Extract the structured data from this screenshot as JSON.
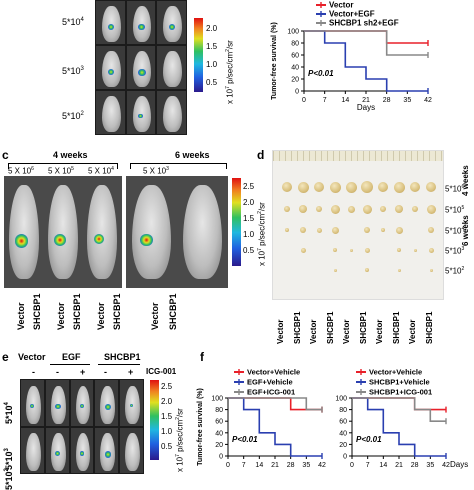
{
  "panel_a": {
    "row_labels": [
      "5*10",
      "5*10",
      "5*10"
    ],
    "row_exponents": [
      "4",
      "3",
      "2"
    ],
    "colorbar": {
      "ticks": [
        "2.0",
        "1.5",
        "1.0",
        "0.5"
      ],
      "unit": "x 10",
      "unit_exp": "7",
      "unit_rest": " p/sec/cm",
      "unit_exp2": "2",
      "unit_tail": "/sr"
    }
  },
  "panel_b_chart": {
    "chart_data": {
      "type": "line",
      "ylabel": "Tumor-free survival (%)",
      "xlabel": "Days",
      "x_ticks": [
        "0",
        "7",
        "14",
        "21",
        "28",
        "35",
        "42"
      ],
      "y_ticks": [
        "0",
        "20",
        "40",
        "60",
        "80",
        "100"
      ],
      "xlim": [
        0,
        42
      ],
      "ylim": [
        0,
        100
      ],
      "annotation": "P<0.01",
      "series": [
        {
          "name": "Vector",
          "color": "#e8202a",
          "points": [
            [
              0,
              100
            ],
            [
              28,
              100
            ],
            [
              28,
              80
            ],
            [
              42,
              80
            ]
          ]
        },
        {
          "name": "Vector+EGF",
          "color": "#2a3fb0",
          "points": [
            [
              0,
              100
            ],
            [
              7,
              100
            ],
            [
              7,
              80
            ],
            [
              14,
              80
            ],
            [
              14,
              40
            ],
            [
              21,
              40
            ],
            [
              21,
              20
            ],
            [
              28,
              20
            ],
            [
              28,
              0
            ],
            [
              42,
              0
            ]
          ]
        },
        {
          "name": "SHCBP1 sh2+EGF",
          "color": "#888888",
          "points": [
            [
              0,
              100
            ],
            [
              28,
              100
            ],
            [
              28,
              60
            ],
            [
              42,
              60
            ]
          ]
        }
      ]
    }
  },
  "panel_c": {
    "letter": "c",
    "group1_label": "4 weeks",
    "group2_label": "6 weeks",
    "doses": [
      "5 X 10",
      "5 X 10",
      "5 X 10",
      "5 X 10"
    ],
    "dose_exponents": [
      "6",
      "5",
      "4",
      "3"
    ],
    "columns": [
      "Vector",
      "SHCBP1",
      "Vector",
      "SHCBP1",
      "Vector",
      "SHCBP1",
      "Vector",
      "SHCBP1"
    ],
    "colorbar": {
      "ticks": [
        "2.5",
        "2.0",
        "1.5",
        "1.0",
        "0.5"
      ],
      "unit": "x 10",
      "unit_exp": "7",
      "unit_rest": " p/sec/cm",
      "unit_exp2": "2",
      "unit_tail": "/sr"
    }
  },
  "panel_d": {
    "letter": "d",
    "rows": [
      "5*10",
      "5*10",
      "5*10",
      "5*10",
      "5*10"
    ],
    "row_exponents": [
      "6",
      "5",
      "4",
      "3",
      "2"
    ],
    "weeks_top": "4 weeks",
    "weeks_bottom": "6 weeks",
    "columns": [
      "Vector",
      "SHCBP1",
      "Vector",
      "SHCBP1",
      "Vector",
      "SHCBP1",
      "Vector",
      "SHCBP1",
      "Vector",
      "SHCBP1"
    ]
  },
  "panel_e": {
    "letter": "e",
    "header_vector": "Vector",
    "header_egf": "EGF",
    "header_shcbp1": "SHCBP1",
    "icg_label": "ICG-001",
    "signs": [
      "-",
      "-",
      "+",
      "-",
      "+"
    ],
    "row_labels": [
      "5*10",
      "5*10",
      "5*10"
    ],
    "row_exponents": [
      "4",
      "3",
      "2"
    ],
    "colorbar": {
      "ticks": [
        "2.5",
        "2.0",
        "1.5",
        "1.0",
        "0.5"
      ],
      "unit": "x 10",
      "unit_exp": "7",
      "unit_rest": " p/sec/cm",
      "unit_exp2": "2",
      "unit_tail": "/sr"
    }
  },
  "panel_f": {
    "letter": "f",
    "left_chart": {
      "chart_data": {
        "type": "line",
        "ylabel": "Tumor-free survival (%)",
        "xlabel": "",
        "x_ticks": [
          "0",
          "7",
          "14",
          "21",
          "28",
          "35",
          "42"
        ],
        "y_ticks": [
          "0",
          "20",
          "40",
          "60",
          "80",
          "100"
        ],
        "xlim": [
          0,
          42
        ],
        "ylim": [
          0,
          100
        ],
        "annotation": "P<0.01",
        "series": [
          {
            "name": "Vector+Vehicle",
            "color": "#e8202a",
            "points": [
              [
                0,
                100
              ],
              [
                28,
                100
              ],
              [
                28,
                80
              ],
              [
                42,
                80
              ]
            ]
          },
          {
            "name": "EGF+Vehicle",
            "color": "#2a3fb0",
            "points": [
              [
                0,
                100
              ],
              [
                7,
                100
              ],
              [
                7,
                80
              ],
              [
                14,
                80
              ],
              [
                14,
                40
              ],
              [
                21,
                40
              ],
              [
                21,
                20
              ],
              [
                28,
                20
              ],
              [
                28,
                0
              ],
              [
                42,
                0
              ]
            ]
          },
          {
            "name": "EGF+ICG-001",
            "color": "#888888",
            "points": [
              [
                0,
                100
              ],
              [
                35,
                100
              ],
              [
                35,
                80
              ],
              [
                42,
                80
              ]
            ]
          }
        ]
      }
    },
    "right_chart": {
      "chart_data": {
        "type": "line",
        "xlabel": "Days",
        "x_ticks": [
          "0",
          "7",
          "14",
          "21",
          "28",
          "35",
          "42"
        ],
        "y_ticks": [
          "0",
          "20",
          "40",
          "60",
          "80",
          "100"
        ],
        "xlim": [
          0,
          42
        ],
        "ylim": [
          0,
          100
        ],
        "annotation": "P<0.01",
        "series": [
          {
            "name": "Vector+Vehicle",
            "color": "#e8202a",
            "points": [
              [
                0,
                100
              ],
              [
                28,
                100
              ],
              [
                28,
                80
              ],
              [
                42,
                80
              ]
            ]
          },
          {
            "name": "SHCBP1+Vehicle",
            "color": "#2a3fb0",
            "points": [
              [
                0,
                100
              ],
              [
                7,
                100
              ],
              [
                7,
                80
              ],
              [
                14,
                80
              ],
              [
                14,
                40
              ],
              [
                21,
                40
              ],
              [
                21,
                20
              ],
              [
                28,
                20
              ],
              [
                28,
                0
              ],
              [
                42,
                0
              ]
            ]
          },
          {
            "name": "SHCBP1+ICG-001",
            "color": "#888888",
            "points": [
              [
                0,
                100
              ],
              [
                28,
                100
              ],
              [
                28,
                80
              ],
              [
                35,
                80
              ],
              [
                35,
                60
              ],
              [
                42,
                60
              ]
            ]
          }
        ]
      }
    }
  }
}
